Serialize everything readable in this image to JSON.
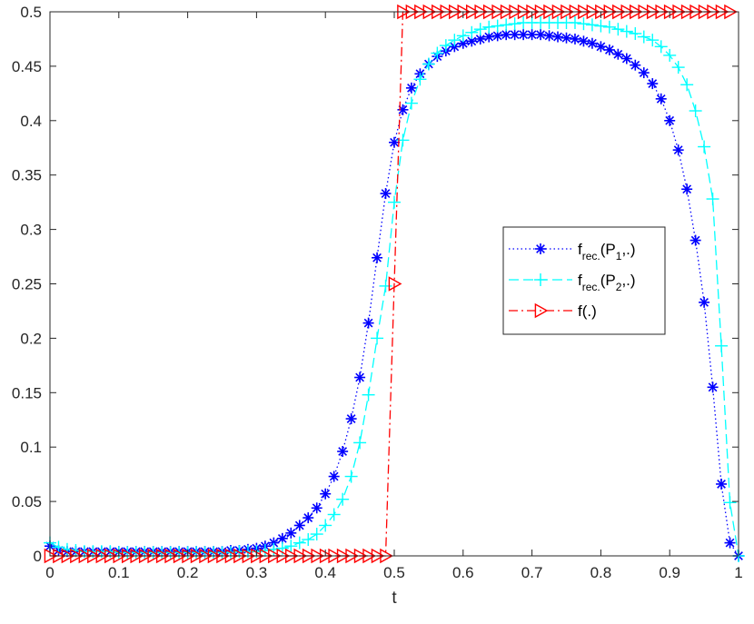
{
  "chart_data": {
    "type": "line",
    "title": "",
    "xlabel": "t",
    "ylabel": "",
    "xlim": [
      0,
      1
    ],
    "ylim": [
      0,
      0.5
    ],
    "xticks": [
      "0",
      "0.1",
      "0.2",
      "0.3",
      "0.4",
      "0.5",
      "0.6",
      "0.7",
      "0.8",
      "0.9",
      "1"
    ],
    "yticks": [
      "0",
      "0.05",
      "0.1",
      "0.15",
      "0.2",
      "0.25",
      "0.3",
      "0.35",
      "0.4",
      "0.45",
      "0.5"
    ],
    "grid": false,
    "legend_position": "right",
    "series": [
      {
        "name": "f_{rec.}(P_1,.)",
        "legend_main": "f",
        "legend_sub1": "rec.",
        "legend_mid": "(P",
        "legend_sub2": "1",
        "legend_end": ",.)",
        "color": "#0000ff",
        "line_style": "dotted",
        "marker": "asterisk",
        "points": [
          [
            0,
            0.009
          ],
          [
            0.0125,
            0.005
          ],
          [
            0.025,
            0.004
          ],
          [
            0.0375,
            0.004
          ],
          [
            0.05,
            0.004
          ],
          [
            0.0625,
            0.004
          ],
          [
            0.075,
            0.004
          ],
          [
            0.0875,
            0.004
          ],
          [
            0.1,
            0.004
          ],
          [
            0.1125,
            0.004
          ],
          [
            0.125,
            0.004
          ],
          [
            0.1375,
            0.004
          ],
          [
            0.15,
            0.004
          ],
          [
            0.1625,
            0.004
          ],
          [
            0.175,
            0.004
          ],
          [
            0.1875,
            0.004
          ],
          [
            0.2,
            0.004
          ],
          [
            0.2125,
            0.004
          ],
          [
            0.225,
            0.004
          ],
          [
            0.2375,
            0.004
          ],
          [
            0.25,
            0.004
          ],
          [
            0.2625,
            0.005
          ],
          [
            0.275,
            0.005
          ],
          [
            0.2875,
            0.006
          ],
          [
            0.3,
            0.007
          ],
          [
            0.3125,
            0.009
          ],
          [
            0.325,
            0.012
          ],
          [
            0.3375,
            0.016
          ],
          [
            0.35,
            0.021
          ],
          [
            0.3625,
            0.028
          ],
          [
            0.375,
            0.035
          ],
          [
            0.3875,
            0.044
          ],
          [
            0.4,
            0.057
          ],
          [
            0.4125,
            0.073
          ],
          [
            0.425,
            0.096
          ],
          [
            0.4375,
            0.126
          ],
          [
            0.45,
            0.164
          ],
          [
            0.4625,
            0.214
          ],
          [
            0.475,
            0.274
          ],
          [
            0.4875,
            0.333
          ],
          [
            0.5,
            0.38
          ],
          [
            0.5125,
            0.41
          ],
          [
            0.525,
            0.43
          ],
          [
            0.5375,
            0.443
          ],
          [
            0.55,
            0.452
          ],
          [
            0.5625,
            0.459
          ],
          [
            0.575,
            0.464
          ],
          [
            0.5875,
            0.468
          ],
          [
            0.6,
            0.471
          ],
          [
            0.6125,
            0.473
          ],
          [
            0.625,
            0.475
          ],
          [
            0.6375,
            0.477
          ],
          [
            0.65,
            0.478
          ],
          [
            0.6625,
            0.479
          ],
          [
            0.675,
            0.479
          ],
          [
            0.6875,
            0.479
          ],
          [
            0.7,
            0.479
          ],
          [
            0.7125,
            0.479
          ],
          [
            0.725,
            0.478
          ],
          [
            0.7375,
            0.477
          ],
          [
            0.75,
            0.476
          ],
          [
            0.7625,
            0.475
          ],
          [
            0.775,
            0.473
          ],
          [
            0.7875,
            0.471
          ],
          [
            0.8,
            0.468
          ],
          [
            0.8125,
            0.465
          ],
          [
            0.825,
            0.461
          ],
          [
            0.8375,
            0.457
          ],
          [
            0.85,
            0.451
          ],
          [
            0.8625,
            0.444
          ],
          [
            0.875,
            0.434
          ],
          [
            0.8875,
            0.42
          ],
          [
            0.9,
            0.4
          ],
          [
            0.9125,
            0.373
          ],
          [
            0.925,
            0.337
          ],
          [
            0.9375,
            0.29
          ],
          [
            0.95,
            0.233
          ],
          [
            0.9625,
            0.155
          ],
          [
            0.975,
            0.066
          ],
          [
            0.9875,
            0.012
          ],
          [
            1,
            0
          ]
        ]
      },
      {
        "name": "f_{rec.}(P_2,.)",
        "legend_main": "f",
        "legend_sub1": "rec.",
        "legend_mid": "(P",
        "legend_sub2": "2",
        "legend_end": ",.)",
        "color": "#00ffff",
        "line_style": "dashed",
        "marker": "plus",
        "points": [
          [
            0,
            0.012
          ],
          [
            0.0125,
            0.008
          ],
          [
            0.025,
            0.006
          ],
          [
            0.0375,
            0.005
          ],
          [
            0.05,
            0.004
          ],
          [
            0.0625,
            0.004
          ],
          [
            0.075,
            0.004
          ],
          [
            0.0875,
            0.004
          ],
          [
            0.1,
            0.003
          ],
          [
            0.1125,
            0.003
          ],
          [
            0.125,
            0.003
          ],
          [
            0.1375,
            0.003
          ],
          [
            0.15,
            0.003
          ],
          [
            0.1625,
            0.003
          ],
          [
            0.175,
            0.003
          ],
          [
            0.1875,
            0.003
          ],
          [
            0.2,
            0.003
          ],
          [
            0.2125,
            0.003
          ],
          [
            0.225,
            0.003
          ],
          [
            0.2375,
            0.003
          ],
          [
            0.25,
            0.003
          ],
          [
            0.2625,
            0.003
          ],
          [
            0.275,
            0.004
          ],
          [
            0.2875,
            0.004
          ],
          [
            0.3,
            0.004
          ],
          [
            0.3125,
            0.005
          ],
          [
            0.325,
            0.006
          ],
          [
            0.3375,
            0.007
          ],
          [
            0.35,
            0.009
          ],
          [
            0.3625,
            0.012
          ],
          [
            0.375,
            0.015
          ],
          [
            0.3875,
            0.02
          ],
          [
            0.4,
            0.028
          ],
          [
            0.4125,
            0.038
          ],
          [
            0.425,
            0.052
          ],
          [
            0.4375,
            0.073
          ],
          [
            0.45,
            0.104
          ],
          [
            0.4625,
            0.148
          ],
          [
            0.475,
            0.2
          ],
          [
            0.4875,
            0.248
          ],
          [
            0.5,
            0.325
          ],
          [
            0.5125,
            0.382
          ],
          [
            0.525,
            0.416
          ],
          [
            0.5375,
            0.438
          ],
          [
            0.55,
            0.452
          ],
          [
            0.5625,
            0.462
          ],
          [
            0.575,
            0.469
          ],
          [
            0.5875,
            0.474
          ],
          [
            0.6,
            0.478
          ],
          [
            0.6125,
            0.481
          ],
          [
            0.625,
            0.484
          ],
          [
            0.6375,
            0.486
          ],
          [
            0.65,
            0.487
          ],
          [
            0.6625,
            0.488
          ],
          [
            0.675,
            0.489
          ],
          [
            0.6875,
            0.49
          ],
          [
            0.7,
            0.49
          ],
          [
            0.7125,
            0.49
          ],
          [
            0.725,
            0.49
          ],
          [
            0.7375,
            0.49
          ],
          [
            0.75,
            0.49
          ],
          [
            0.7625,
            0.49
          ],
          [
            0.775,
            0.489
          ],
          [
            0.7875,
            0.488
          ],
          [
            0.8,
            0.487
          ],
          [
            0.8125,
            0.486
          ],
          [
            0.825,
            0.484
          ],
          [
            0.8375,
            0.482
          ],
          [
            0.85,
            0.48
          ],
          [
            0.8625,
            0.477
          ],
          [
            0.875,
            0.474
          ],
          [
            0.8875,
            0.468
          ],
          [
            0.9,
            0.46
          ],
          [
            0.9125,
            0.449
          ],
          [
            0.925,
            0.433
          ],
          [
            0.9375,
            0.409
          ],
          [
            0.95,
            0.376
          ],
          [
            0.9625,
            0.328
          ],
          [
            0.975,
            0.193
          ],
          [
            0.9875,
            0.049
          ],
          [
            1,
            0
          ]
        ]
      },
      {
        "name": "f(.)",
        "legend_main": "f(.)",
        "color": "#ff0000",
        "line_style": "dashdot",
        "marker": "triangle-right",
        "points": [
          [
            0,
            0
          ],
          [
            0.0125,
            0
          ],
          [
            0.025,
            0
          ],
          [
            0.0375,
            0
          ],
          [
            0.05,
            0
          ],
          [
            0.0625,
            0
          ],
          [
            0.075,
            0
          ],
          [
            0.0875,
            0
          ],
          [
            0.1,
            0
          ],
          [
            0.1125,
            0
          ],
          [
            0.125,
            0
          ],
          [
            0.1375,
            0
          ],
          [
            0.15,
            0
          ],
          [
            0.1625,
            0
          ],
          [
            0.175,
            0
          ],
          [
            0.1875,
            0
          ],
          [
            0.2,
            0
          ],
          [
            0.2125,
            0
          ],
          [
            0.225,
            0
          ],
          [
            0.2375,
            0
          ],
          [
            0.25,
            0
          ],
          [
            0.2625,
            0
          ],
          [
            0.275,
            0
          ],
          [
            0.2875,
            0
          ],
          [
            0.3,
            0
          ],
          [
            0.3125,
            0
          ],
          [
            0.325,
            0
          ],
          [
            0.3375,
            0
          ],
          [
            0.35,
            0
          ],
          [
            0.3625,
            0
          ],
          [
            0.375,
            0
          ],
          [
            0.3875,
            0
          ],
          [
            0.4,
            0
          ],
          [
            0.4125,
            0
          ],
          [
            0.425,
            0
          ],
          [
            0.4375,
            0
          ],
          [
            0.45,
            0
          ],
          [
            0.4625,
            0
          ],
          [
            0.475,
            0
          ],
          [
            0.4875,
            0
          ],
          [
            0.5,
            0.25
          ],
          [
            0.5125,
            0.5
          ],
          [
            0.525,
            0.5
          ],
          [
            0.5375,
            0.5
          ],
          [
            0.55,
            0.5
          ],
          [
            0.5625,
            0.5
          ],
          [
            0.575,
            0.5
          ],
          [
            0.5875,
            0.5
          ],
          [
            0.6,
            0.5
          ],
          [
            0.6125,
            0.5
          ],
          [
            0.625,
            0.5
          ],
          [
            0.6375,
            0.5
          ],
          [
            0.65,
            0.5
          ],
          [
            0.6625,
            0.5
          ],
          [
            0.675,
            0.5
          ],
          [
            0.6875,
            0.5
          ],
          [
            0.7,
            0.5
          ],
          [
            0.7125,
            0.5
          ],
          [
            0.725,
            0.5
          ],
          [
            0.7375,
            0.5
          ],
          [
            0.75,
            0.5
          ],
          [
            0.7625,
            0.5
          ],
          [
            0.775,
            0.5
          ],
          [
            0.7875,
            0.5
          ],
          [
            0.8,
            0.5
          ],
          [
            0.8125,
            0.5
          ],
          [
            0.825,
            0.5
          ],
          [
            0.8375,
            0.5
          ],
          [
            0.85,
            0.5
          ],
          [
            0.8625,
            0.5
          ],
          [
            0.875,
            0.5
          ],
          [
            0.8875,
            0.5
          ],
          [
            0.9,
            0.5
          ],
          [
            0.9125,
            0.5
          ],
          [
            0.925,
            0.5
          ],
          [
            0.9375,
            0.5
          ],
          [
            0.95,
            0.5
          ],
          [
            0.9625,
            0.5
          ],
          [
            0.975,
            0.5
          ],
          [
            0.9875,
            0.5
          ]
        ]
      }
    ]
  }
}
